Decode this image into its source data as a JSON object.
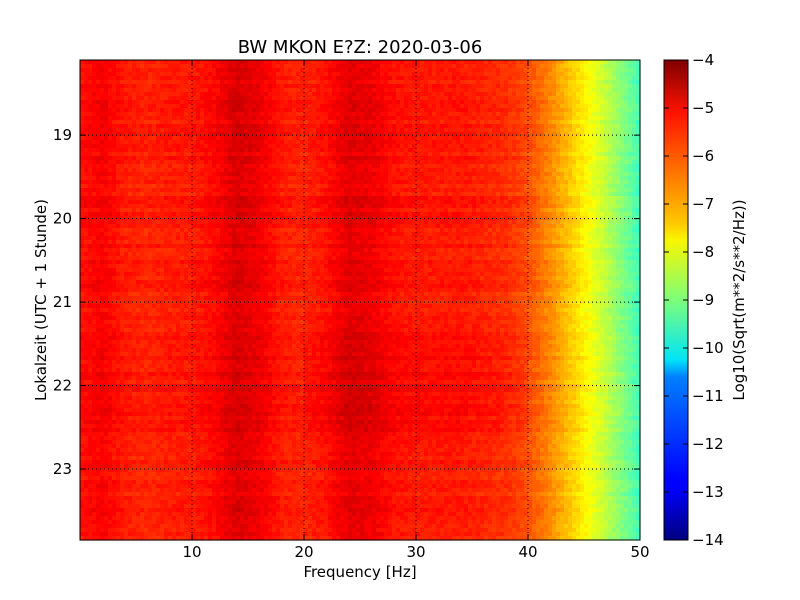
{
  "chart_data": {
    "type": "heatmap",
    "title": "BW MKON E?Z: 2020-03-06",
    "xlabel": "Frequency [Hz]",
    "ylabel": "Lokalzeit (UTC + 1 Stunde)",
    "xlim": [
      0,
      50
    ],
    "ylim": [
      23.85,
      18.1
    ],
    "y_inverted": true,
    "xticks": [
      10,
      20,
      30,
      40,
      50
    ],
    "yticks": [
      19,
      20,
      21,
      22,
      23
    ],
    "grid": true,
    "grid_style": "dotted",
    "colormap": "jet",
    "colorbar": {
      "label": "Log10(Sqrt(m**2/s**2/Hz))",
      "range": [
        -14,
        -4
      ],
      "ticks": [
        -4,
        -5,
        -6,
        -7,
        -8,
        -9,
        -10,
        -11,
        -12,
        -13,
        -14
      ]
    },
    "frequency_profile": {
      "frequencies_hz": [
        0,
        2,
        4,
        6,
        8,
        10,
        12,
        14,
        16,
        18,
        20,
        22,
        24,
        26,
        28,
        30,
        32,
        34,
        36,
        38,
        40,
        42,
        44,
        46,
        48,
        50
      ],
      "log10_amplitude": [
        -5.4,
        -5.2,
        -5.5,
        -5.6,
        -5.5,
        -5.5,
        -5.3,
        -4.9,
        -5.1,
        -5.5,
        -5.6,
        -5.4,
        -5.0,
        -5.1,
        -5.4,
        -5.5,
        -5.5,
        -5.5,
        -5.6,
        -5.7,
        -6.0,
        -6.6,
        -7.3,
        -8.0,
        -8.8,
        -9.6
      ]
    },
    "time_profile": {
      "hours": [
        18.1,
        19,
        20,
        21,
        21.5,
        22,
        22.5,
        23,
        23.85
      ],
      "offset_log10": [
        0.0,
        0.0,
        0.05,
        0.0,
        0.15,
        0.2,
        0.15,
        0.0,
        0.0
      ]
    }
  }
}
